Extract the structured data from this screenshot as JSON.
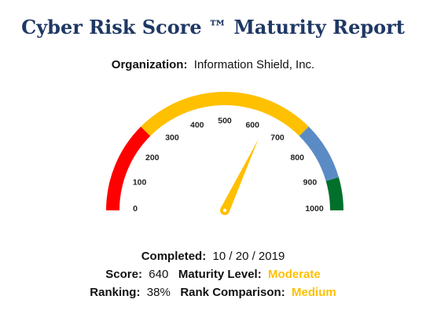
{
  "report": {
    "title": "Cyber Risk Score ™ Maturity Report",
    "organization_label": "Organization:",
    "organization_value": "Information Shield, Inc."
  },
  "gauge": {
    "min": 0,
    "max": 1000,
    "value": 640,
    "tick_labels": [
      "0",
      "100",
      "200",
      "300",
      "400",
      "500",
      "600",
      "700",
      "800",
      "900",
      "1000"
    ],
    "bands": [
      {
        "from": 0,
        "to": 250,
        "color": "#ff0000"
      },
      {
        "from": 250,
        "to": 750,
        "color": "#ffc000"
      },
      {
        "from": 750,
        "to": 910,
        "color": "#5b8bc5"
      },
      {
        "from": 910,
        "to": 1000,
        "color": "#00702c"
      }
    ],
    "needle_color": "#ffc000"
  },
  "details": {
    "completed_label": "Completed:",
    "completed_value": "10 / 20 / 2019",
    "score_label": "Score:",
    "score_value": "640",
    "maturity_label": "Maturity Level:",
    "maturity_value": "Moderate",
    "ranking_label": "Ranking:",
    "ranking_value": "38%",
    "rank_comparison_label": "Rank Comparison:",
    "rank_comparison_value": "Medium",
    "accent_color": "#ffc000"
  }
}
